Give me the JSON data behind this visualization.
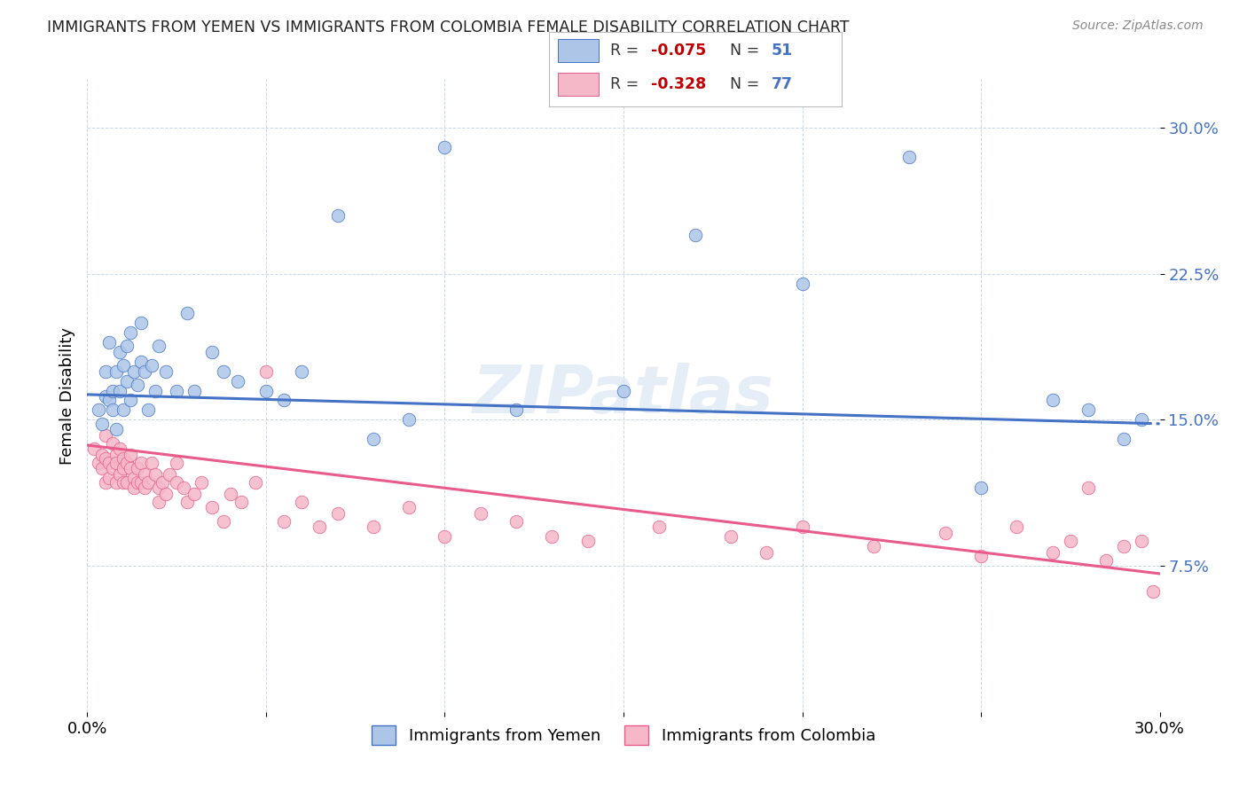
{
  "title": "IMMIGRANTS FROM YEMEN VS IMMIGRANTS FROM COLOMBIA FEMALE DISABILITY CORRELATION CHART",
  "source": "Source: ZipAtlas.com",
  "ylabel": "Female Disability",
  "xlim": [
    0.0,
    0.3
  ],
  "ylim": [
    0.0,
    0.325
  ],
  "yticks": [
    0.075,
    0.15,
    0.225,
    0.3
  ],
  "ytick_labels": [
    "7.5%",
    "15.0%",
    "22.5%",
    "30.0%"
  ],
  "xticks": [
    0.0,
    0.05,
    0.1,
    0.15,
    0.2,
    0.25,
    0.3
  ],
  "xtick_labels": [
    "0.0%",
    "",
    "",
    "",
    "",
    "",
    "30.0%"
  ],
  "yemen_R": -0.075,
  "yemen_N": 51,
  "colombia_R": -0.328,
  "colombia_N": 77,
  "yemen_color": "#adc6e8",
  "colombia_color": "#f5b8c8",
  "trendline_yemen_color": "#4472c4",
  "trendline_colombia_color": "#e85b8a",
  "watermark": "ZIPatlas",
  "legend_R_color": "#c00000",
  "legend_N_color": "#4472c4",
  "yemen_x": [
    0.003,
    0.004,
    0.005,
    0.005,
    0.006,
    0.006,
    0.007,
    0.007,
    0.008,
    0.008,
    0.009,
    0.009,
    0.01,
    0.01,
    0.011,
    0.011,
    0.012,
    0.012,
    0.013,
    0.014,
    0.015,
    0.015,
    0.016,
    0.017,
    0.018,
    0.019,
    0.02,
    0.022,
    0.025,
    0.028,
    0.03,
    0.035,
    0.038,
    0.042,
    0.05,
    0.055,
    0.06,
    0.07,
    0.08,
    0.09,
    0.1,
    0.12,
    0.15,
    0.17,
    0.2,
    0.23,
    0.25,
    0.27,
    0.28,
    0.29,
    0.295
  ],
  "yemen_y": [
    0.155,
    0.148,
    0.162,
    0.175,
    0.16,
    0.19,
    0.165,
    0.155,
    0.175,
    0.145,
    0.185,
    0.165,
    0.178,
    0.155,
    0.188,
    0.17,
    0.16,
    0.195,
    0.175,
    0.168,
    0.2,
    0.18,
    0.175,
    0.155,
    0.178,
    0.165,
    0.188,
    0.175,
    0.165,
    0.205,
    0.165,
    0.185,
    0.175,
    0.17,
    0.165,
    0.16,
    0.175,
    0.255,
    0.14,
    0.15,
    0.29,
    0.155,
    0.165,
    0.245,
    0.22,
    0.285,
    0.115,
    0.16,
    0.155,
    0.14,
    0.15
  ],
  "colombia_x": [
    0.002,
    0.003,
    0.004,
    0.004,
    0.005,
    0.005,
    0.005,
    0.006,
    0.006,
    0.007,
    0.007,
    0.008,
    0.008,
    0.008,
    0.009,
    0.009,
    0.01,
    0.01,
    0.01,
    0.011,
    0.011,
    0.012,
    0.012,
    0.013,
    0.013,
    0.014,
    0.014,
    0.015,
    0.015,
    0.016,
    0.016,
    0.017,
    0.018,
    0.019,
    0.02,
    0.02,
    0.021,
    0.022,
    0.023,
    0.025,
    0.025,
    0.027,
    0.028,
    0.03,
    0.032,
    0.035,
    0.038,
    0.04,
    0.043,
    0.047,
    0.05,
    0.055,
    0.06,
    0.065,
    0.07,
    0.08,
    0.09,
    0.1,
    0.11,
    0.12,
    0.13,
    0.14,
    0.16,
    0.18,
    0.19,
    0.2,
    0.22,
    0.24,
    0.25,
    0.26,
    0.27,
    0.275,
    0.28,
    0.285,
    0.29,
    0.295,
    0.298
  ],
  "colombia_y": [
    0.135,
    0.128,
    0.132,
    0.125,
    0.142,
    0.13,
    0.118,
    0.128,
    0.12,
    0.138,
    0.125,
    0.132,
    0.118,
    0.128,
    0.122,
    0.135,
    0.13,
    0.118,
    0.125,
    0.128,
    0.118,
    0.125,
    0.132,
    0.12,
    0.115,
    0.125,
    0.118,
    0.128,
    0.118,
    0.122,
    0.115,
    0.118,
    0.128,
    0.122,
    0.115,
    0.108,
    0.118,
    0.112,
    0.122,
    0.118,
    0.128,
    0.115,
    0.108,
    0.112,
    0.118,
    0.105,
    0.098,
    0.112,
    0.108,
    0.118,
    0.175,
    0.098,
    0.108,
    0.095,
    0.102,
    0.095,
    0.105,
    0.09,
    0.102,
    0.098,
    0.09,
    0.088,
    0.095,
    0.09,
    0.082,
    0.095,
    0.085,
    0.092,
    0.08,
    0.095,
    0.082,
    0.088,
    0.115,
    0.078,
    0.085,
    0.088,
    0.062
  ]
}
